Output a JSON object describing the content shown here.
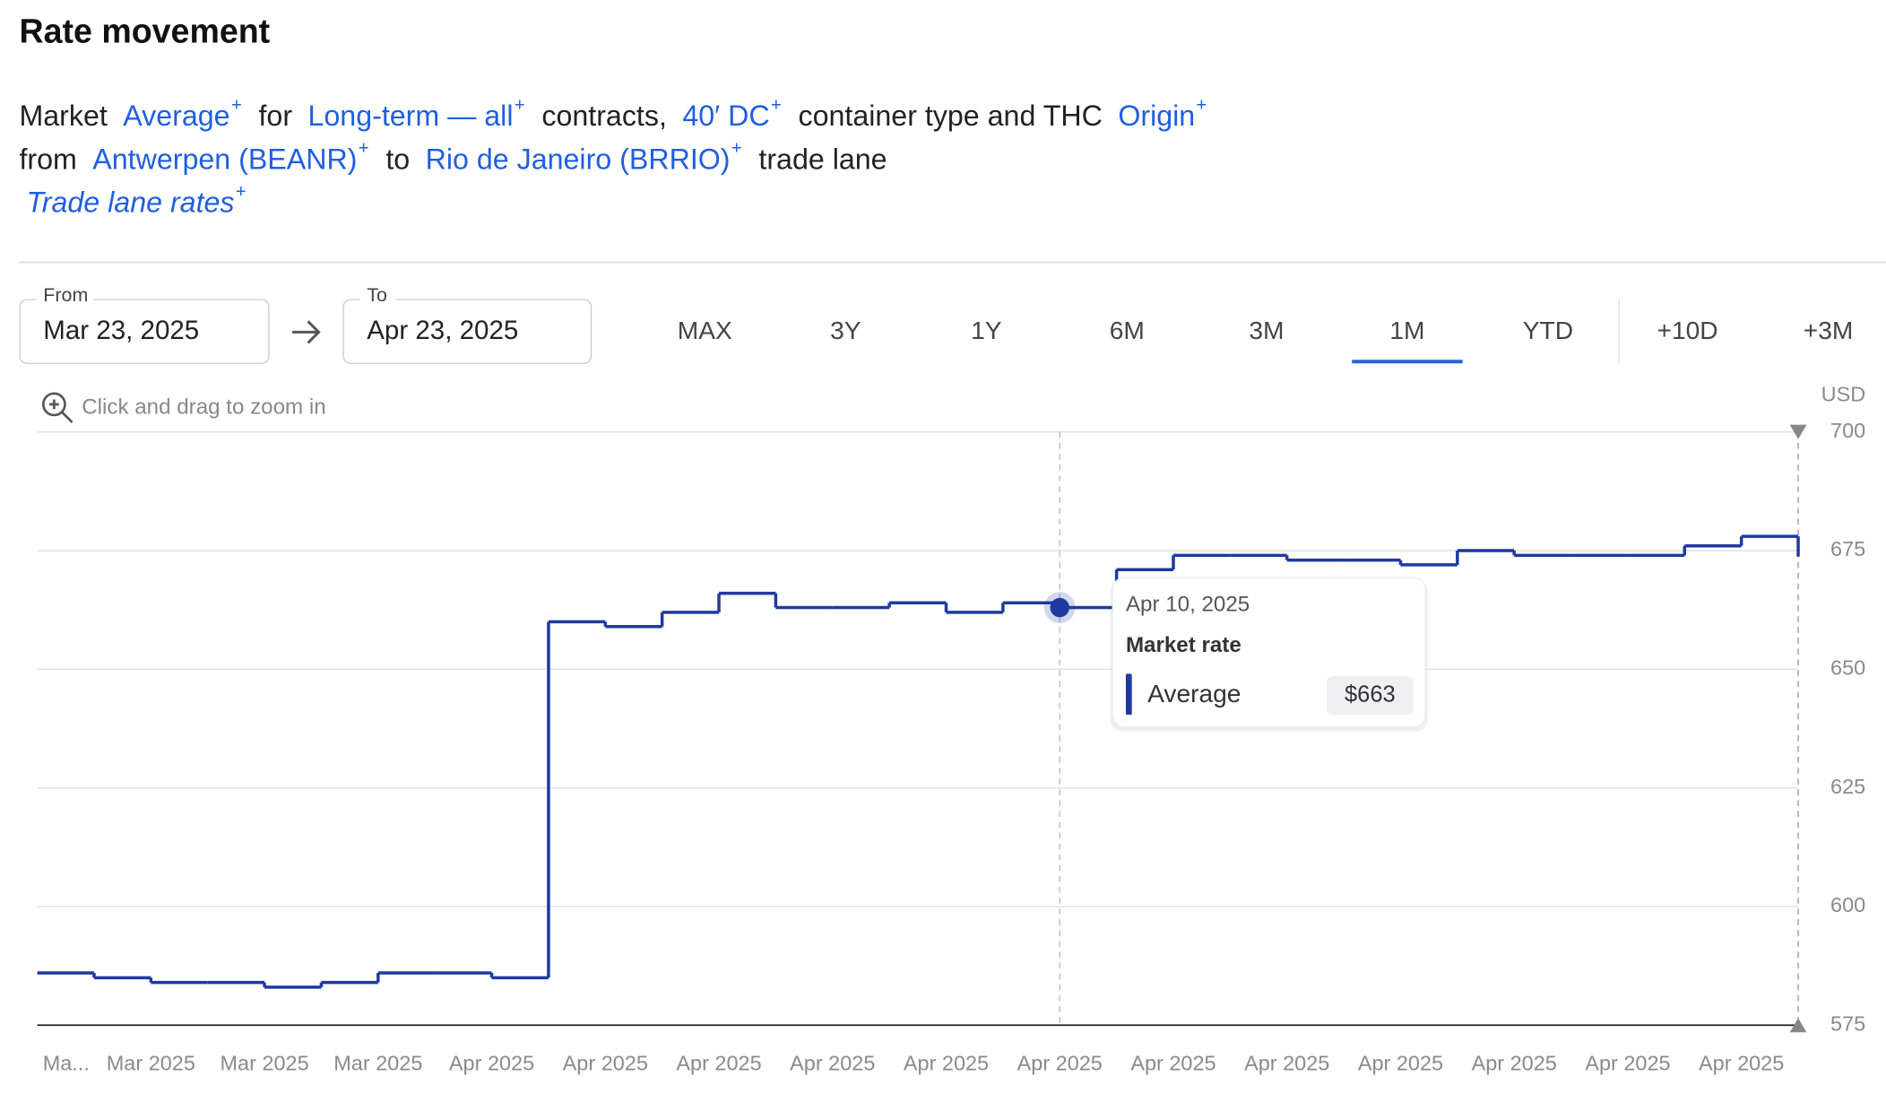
{
  "title": "Rate movement",
  "link_marker": "+",
  "description": [
    [
      {
        "text": "Market"
      },
      {
        "text": "Average",
        "link": true
      },
      {
        "text": "for"
      },
      {
        "text": "Long-term — all",
        "link": true
      },
      {
        "text": "contracts,"
      },
      {
        "text": "40′ DC",
        "link": true
      },
      {
        "text": "container type and THC"
      },
      {
        "text": "Origin",
        "link": true
      }
    ],
    [
      {
        "text": "from"
      },
      {
        "text": "Antwerpen (BEANR)",
        "link": true
      },
      {
        "text": "to"
      },
      {
        "text": "Rio de Janeiro (BRRIO)",
        "link": true
      },
      {
        "text": "trade lane"
      }
    ],
    [
      {
        "text": "Trade lane rates",
        "link": true,
        "italic": true
      }
    ]
  ],
  "from": {
    "label": "From",
    "value": "Mar 23, 2025"
  },
  "to": {
    "label": "To",
    "value": "Apr 23, 2025"
  },
  "ranges": [
    "MAX",
    "3Y",
    "1Y",
    "6M",
    "3M",
    "1M",
    "YTD"
  ],
  "active_range": "1M",
  "extend": [
    "+10D",
    "+3M"
  ],
  "zoom_hint": "Click and drag to zoom in",
  "chart_data": {
    "type": "step",
    "unit": "USD",
    "categories": [
      "Ma...",
      null,
      "Mar 2025",
      null,
      "Mar 2025",
      null,
      "Mar 2025",
      null,
      "Apr 2025",
      null,
      "Apr 2025",
      null,
      "Apr 2025",
      null,
      "Apr 2025",
      null,
      "Apr 2025",
      null,
      "Apr 2025",
      null,
      "Apr 2025",
      null,
      "Apr 2025",
      null,
      "Apr 2025",
      null,
      "Apr 2025",
      null,
      "Apr 2025",
      null,
      "Apr 2025",
      null
    ],
    "series": [
      {
        "name": "Average",
        "color": "#1f3a9e",
        "values": [
          586,
          585,
          584,
          584,
          583,
          584,
          586,
          586,
          585,
          660,
          659,
          662,
          666,
          663,
          663,
          664,
          662,
          664,
          663,
          671,
          674,
          674,
          673,
          673,
          672,
          675,
          674,
          674,
          674,
          676,
          678,
          674
        ]
      }
    ],
    "ylim": [
      575,
      700
    ],
    "yticks": [
      575,
      600,
      625,
      650,
      675,
      700
    ],
    "grid": true,
    "tooltip": {
      "date": "Apr 10, 2025",
      "heading": "Market rate",
      "name": "Average",
      "value": 663,
      "value_label": "$663"
    }
  }
}
